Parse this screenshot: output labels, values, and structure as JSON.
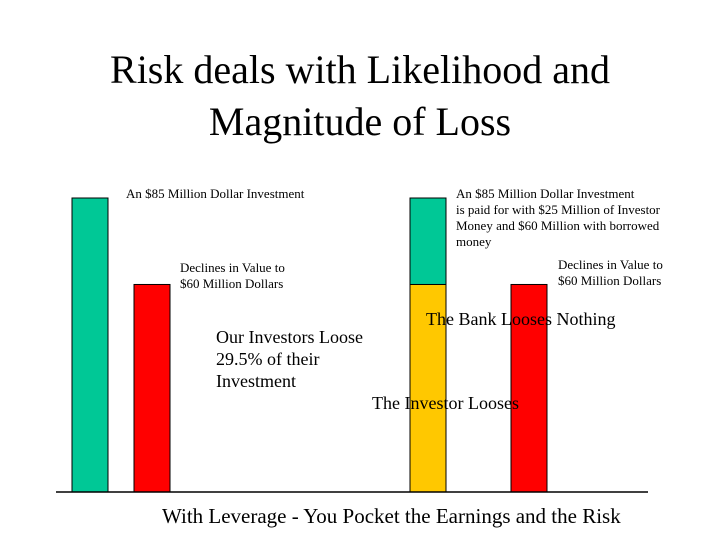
{
  "slide": {
    "title_line1": "Risk deals with Likelihood and",
    "title_line2": "Magnitude of Loss",
    "footer": "With Leverage - You Pocket the Earnings and the Risk"
  },
  "annotations": {
    "left_investment": "An $85 Million Dollar Investment",
    "left_decline_line1": "Declines in Value to",
    "left_decline_line2": "$60 Million Dollars",
    "investor_loss_line1": "Our Investors Loose",
    "investor_loss_line2": "29.5% of their",
    "investor_loss_line3": "Investment",
    "right_investment_line1": "An $85 Million Dollar Investment",
    "right_investment_line2": "is paid for with $25 Million of Investor",
    "right_investment_line3": "Money and $60 Million with borrowed",
    "right_investment_line4": "money",
    "right_decline_line1": "Declines in Value to",
    "right_decline_line2": "$60 Million Dollars",
    "bank_text": "The Bank Looses Nothing",
    "investor_text": "The Investor Looses"
  },
  "colors": {
    "green": "#00C896",
    "red": "#FF0000",
    "yellow": "#FFC800",
    "axis": "#000000"
  },
  "chart_data": {
    "type": "bar",
    "units": "$ Million",
    "ylim": [
      0,
      85
    ],
    "bars": [
      {
        "group": "without-leverage",
        "segments": [
          {
            "value": 85,
            "color": "green"
          }
        ]
      },
      {
        "group": "without-leverage",
        "segments": [
          {
            "value": 60,
            "color": "red"
          }
        ]
      },
      {
        "group": "with-leverage",
        "segments": [
          {
            "value": 60,
            "color": "yellow"
          },
          {
            "value": 25,
            "color": "green"
          }
        ]
      },
      {
        "group": "with-leverage",
        "segments": [
          {
            "value": 60,
            "color": "red"
          }
        ]
      }
    ]
  }
}
